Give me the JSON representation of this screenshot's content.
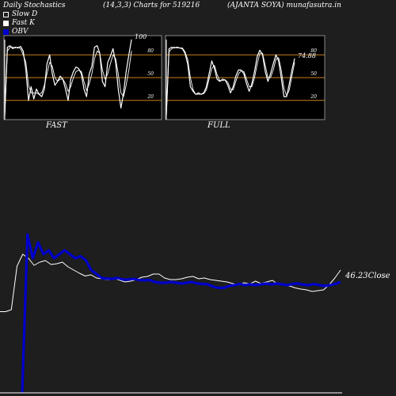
{
  "header": {
    "title": "Daily Stochastics",
    "params": "(14,3,3) Charts for 519216",
    "source": "(AJANTA SOYA) munafasutra.in"
  },
  "legend": [
    {
      "label": "Slow  D",
      "color": "#ffffff"
    },
    {
      "label": "Fast K",
      "color": "#ffffff"
    },
    {
      "label": "OBV",
      "color": "#0000cc"
    }
  ],
  "chart_data": [
    {
      "type": "line",
      "label": "FAST",
      "ylim": [
        0,
        100
      ],
      "levels": [
        20,
        50,
        80
      ],
      "level_labels": [
        "20",
        "50",
        "80"
      ],
      "last_value_label": "100",
      "series": [
        {
          "values": [
            0,
            90,
            92,
            88,
            90,
            89,
            91,
            85,
            60,
            20,
            38,
            22,
            35,
            28,
            25,
            35,
            68,
            80,
            55,
            40,
            45,
            52,
            48,
            35,
            20,
            48,
            58,
            64,
            62,
            55,
            35,
            25,
            55,
            65,
            90,
            92,
            82,
            45,
            38,
            70,
            78,
            88,
            70,
            35,
            10,
            30,
            58,
            80,
            100
          ]
        },
        {
          "values": [
            0,
            85,
            90,
            90,
            89,
            90,
            88,
            80,
            70,
            40,
            30,
            30,
            30,
            28,
            30,
            40,
            55,
            70,
            65,
            50,
            45,
            48,
            48,
            42,
            32,
            38,
            50,
            58,
            60,
            58,
            45,
            33,
            42,
            55,
            75,
            85,
            82,
            60,
            48,
            55,
            68,
            80,
            75,
            55,
            30,
            25,
            40,
            60,
            85
          ]
        }
      ]
    },
    {
      "type": "line",
      "label": "FULL",
      "ylim": [
        0,
        100
      ],
      "levels": [
        20,
        50,
        80
      ],
      "level_labels": [
        "20",
        "50",
        "80"
      ],
      "last_value_label": "74.88",
      "series": [
        {
          "values": [
            0,
            88,
            90,
            89,
            90,
            89,
            88,
            82,
            68,
            38,
            32,
            28,
            30,
            28,
            30,
            38,
            55,
            72,
            62,
            48,
            45,
            48,
            47,
            40,
            30,
            38,
            52,
            60,
            60,
            55,
            42,
            32,
            42,
            58,
            78,
            86,
            80,
            58,
            45,
            55,
            68,
            80,
            72,
            50,
            25,
            25,
            42,
            60,
            75
          ]
        },
        {
          "values": [
            0,
            84,
            88,
            90,
            89,
            89,
            89,
            84,
            74,
            50,
            34,
            28,
            28,
            28,
            29,
            34,
            48,
            62,
            66,
            54,
            46,
            46,
            47,
            44,
            35,
            34,
            45,
            55,
            59,
            58,
            48,
            38,
            38,
            50,
            68,
            82,
            82,
            66,
            50,
            50,
            60,
            74,
            76,
            60,
            36,
            26,
            34,
            52,
            70
          ]
        }
      ]
    },
    {
      "type": "line",
      "label": "",
      "series": [
        {
          "name": "OBV",
          "values": [
            -200,
            200,
            140,
            180,
            150,
            160,
            140,
            150,
            160,
            150,
            140,
            145,
            135,
            110,
            100,
            90,
            88,
            88,
            90,
            86,
            86,
            88,
            85,
            84,
            85,
            80,
            78,
            78,
            80,
            78,
            76,
            78,
            80,
            76,
            75,
            74,
            68,
            65,
            65,
            70,
            72,
            75,
            72,
            74,
            72,
            74,
            76,
            74,
            76,
            74,
            72,
            75,
            76,
            73,
            72,
            75,
            72,
            70,
            72,
            75,
            80
          ]
        },
        {
          "name": "Close",
          "values": [
            5,
            5,
            10,
            120,
            150,
            140,
            122,
            130,
            134,
            124,
            126,
            130,
            118,
            110,
            102,
            95,
            98,
            90,
            88,
            85,
            90,
            85,
            80,
            82,
            86,
            92,
            94,
            100,
            100,
            90,
            86,
            86,
            88,
            92,
            94,
            88,
            90,
            86,
            84,
            82,
            80,
            76,
            72,
            78,
            75,
            82,
            76,
            80,
            84,
            74,
            72,
            70,
            65,
            62,
            60,
            56,
            58,
            60,
            73,
            90,
            110
          ]
        }
      ],
      "last_value_label": "46.23Close"
    }
  ]
}
